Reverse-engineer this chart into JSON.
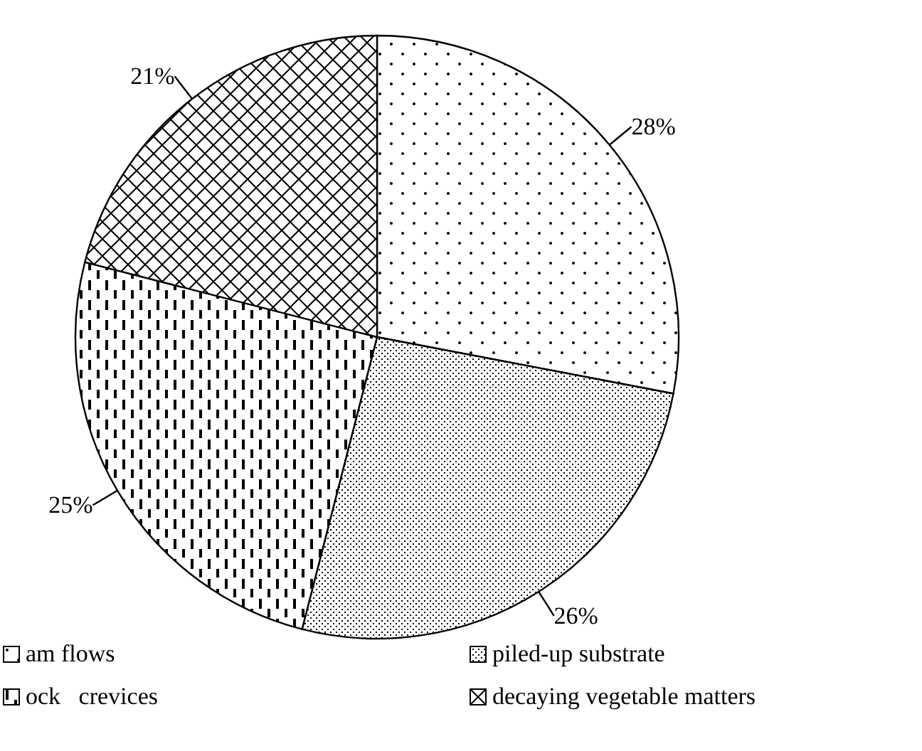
{
  "chart_data": {
    "type": "pie",
    "categories": [
      "am flows",
      "piled-up substrate",
      "ock   crevices",
      "decaying vegetable matters"
    ],
    "values": [
      28,
      26,
      25,
      21
    ],
    "value_labels": [
      "28%",
      "26%",
      "25%",
      "21%"
    ],
    "colors": [
      "#000000",
      "#000000",
      "#000000",
      "#000000"
    ],
    "legend": "bottom"
  }
}
